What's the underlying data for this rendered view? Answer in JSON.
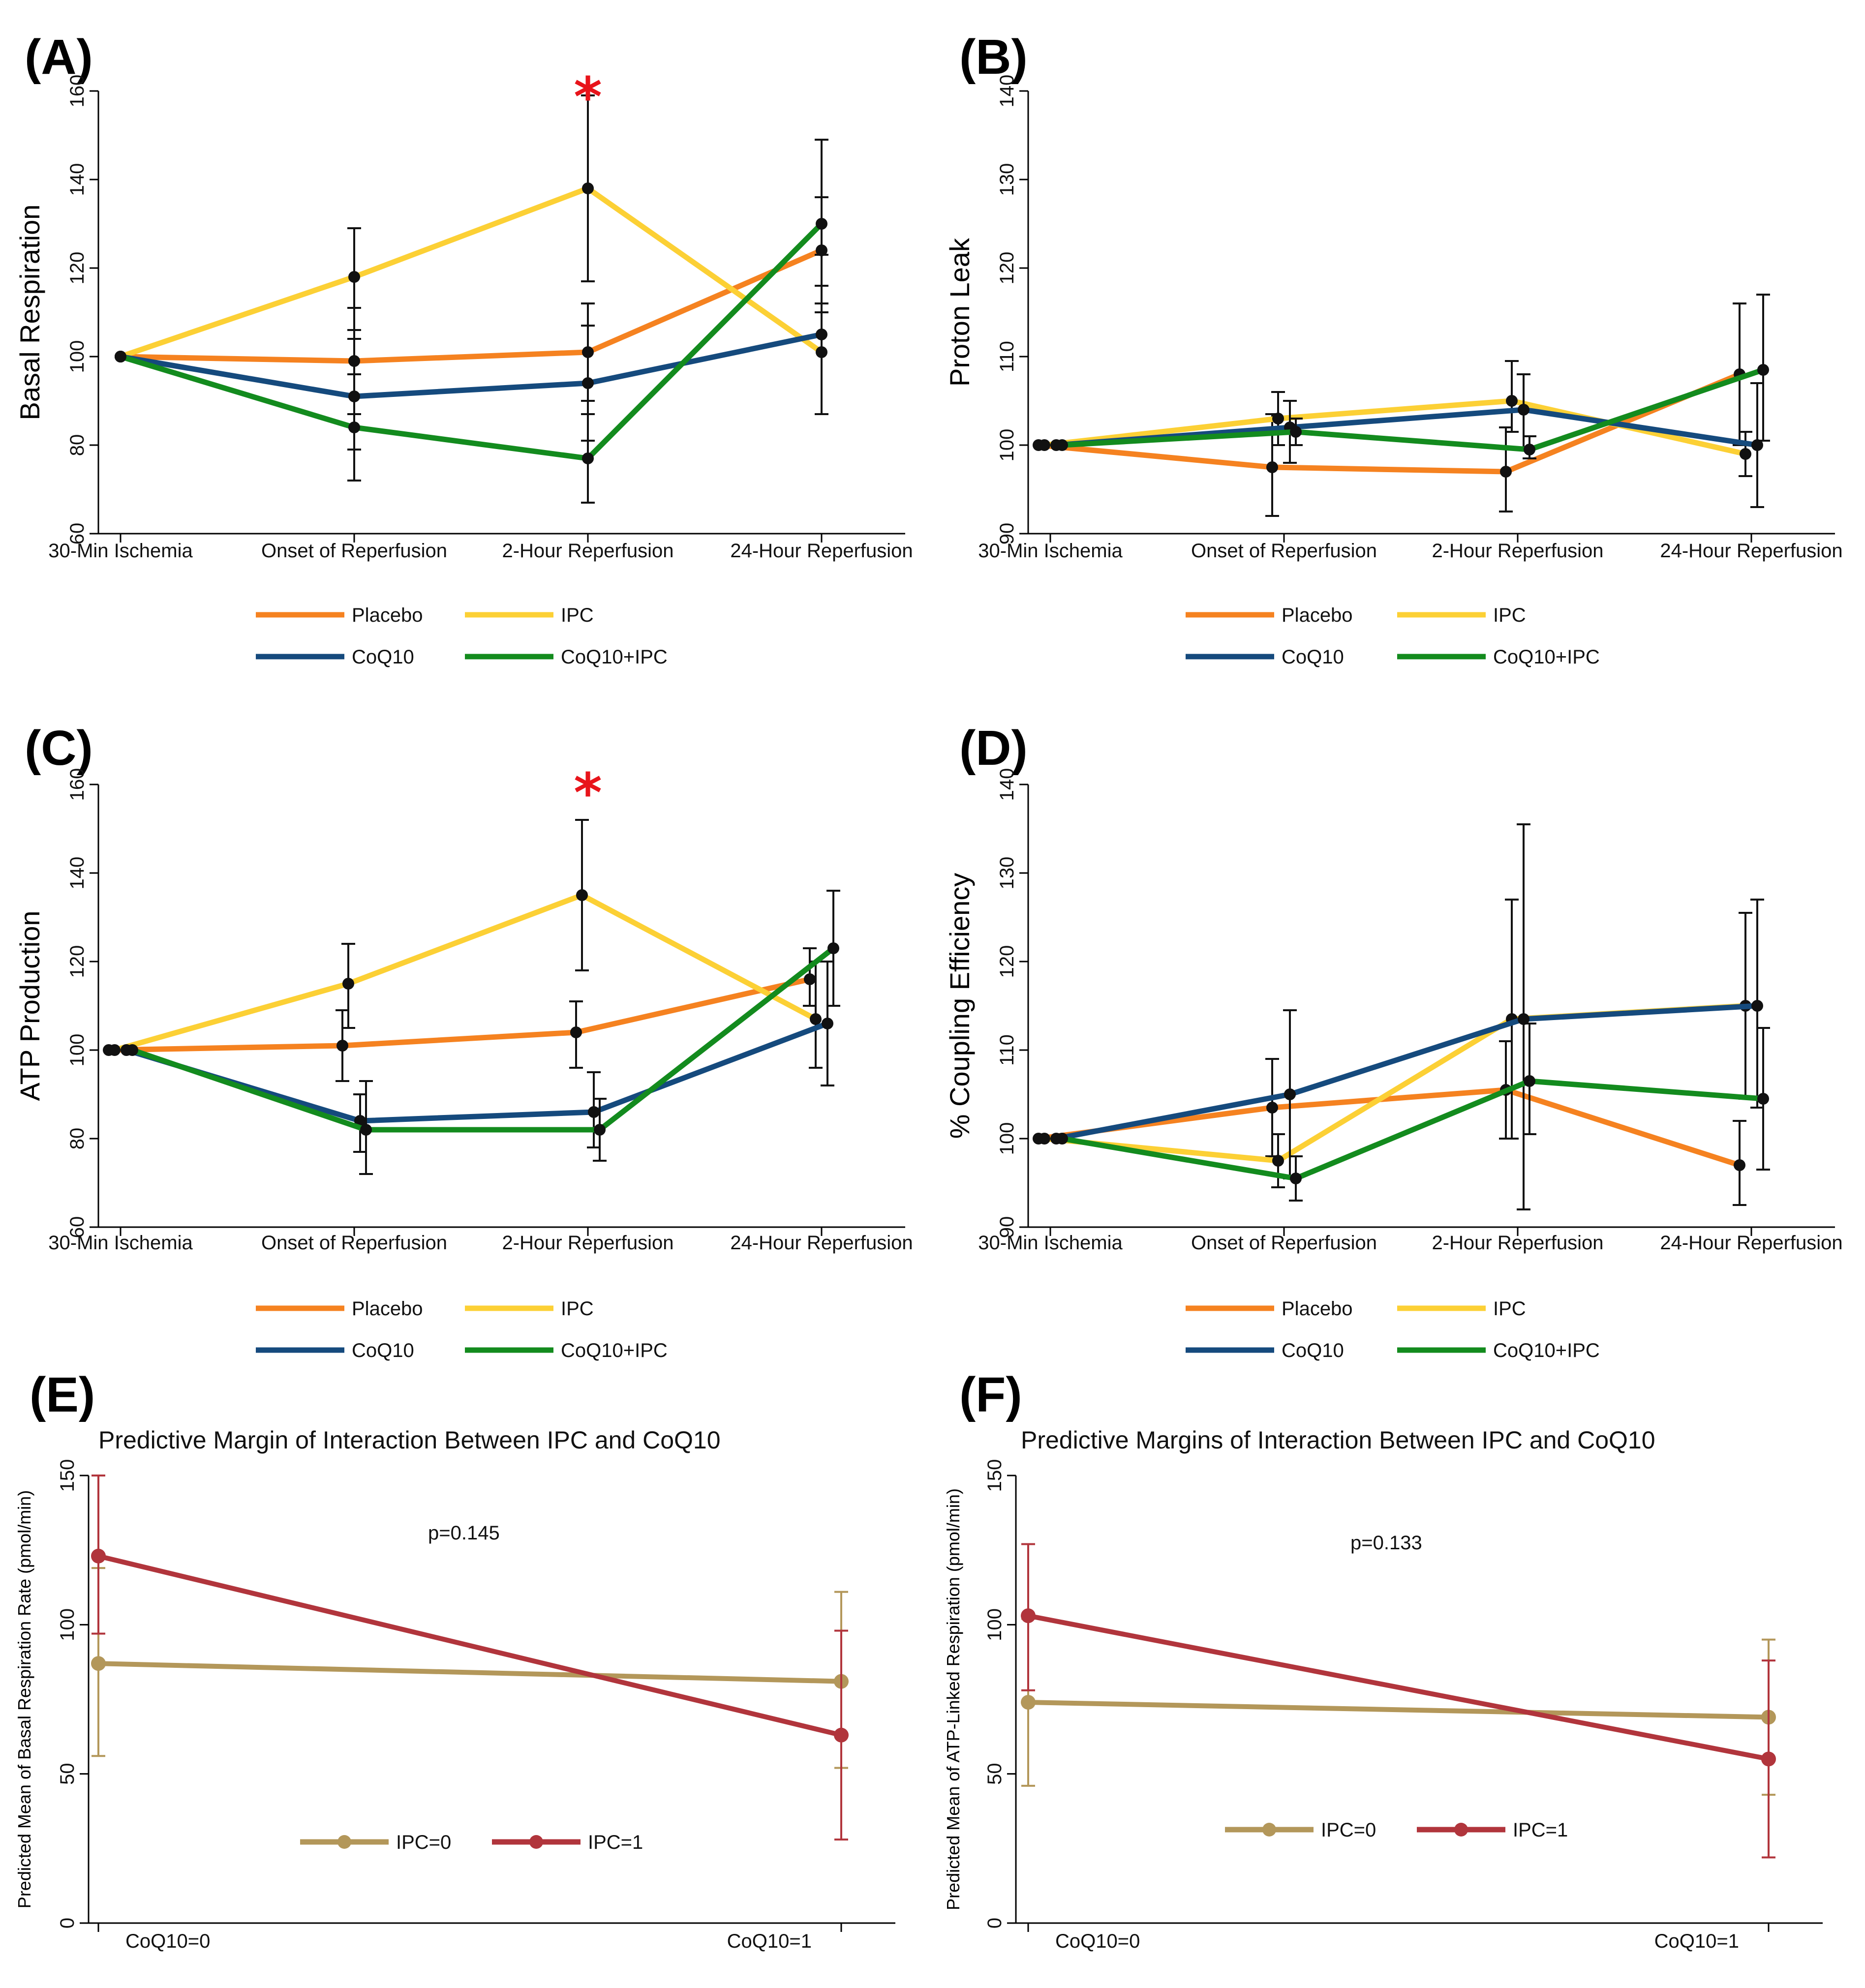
{
  "colors": {
    "Placebo": "#f58220",
    "IPC": "#fcd035",
    "CoQ10": "#154a7d",
    "CoQ10+IPC": "#138b1e",
    "IPC=0": "#b3975a",
    "IPC=1": "#b1353c",
    "star": "#e8141b",
    "marker": "#111111",
    "errorbar": "#111111"
  },
  "chart_data": [
    {
      "panel": "(A)",
      "type": "line",
      "title": "",
      "xlabel": "",
      "ylabel": "Basal Respiration",
      "ylim": [
        60,
        160
      ],
      "yticks": [
        60,
        80,
        100,
        120,
        140,
        160
      ],
      "categories": [
        "30-Min Ischemia",
        "Onset of Reperfusion",
        "2-Hour Reperfusion",
        "24-Hour Reperfusion"
      ],
      "series": [
        {
          "name": "Placebo",
          "values": [
            100,
            99,
            101,
            124
          ],
          "lower": [
            null,
            87,
            90,
            112
          ],
          "upper": [
            null,
            111,
            112,
            136
          ]
        },
        {
          "name": "IPC",
          "values": [
            100,
            118,
            138,
            101
          ],
          "lower": [
            null,
            106,
            117,
            87
          ],
          "upper": [
            null,
            129,
            159,
            116
          ]
        },
        {
          "name": "CoQ10",
          "values": [
            100,
            91,
            94,
            105
          ],
          "lower": [
            null,
            79,
            81,
            87
          ],
          "upper": [
            null,
            104,
            107,
            123
          ]
        },
        {
          "name": "CoQ10+IPC",
          "values": [
            100,
            84,
            77,
            130
          ],
          "lower": [
            null,
            72,
            67,
            110
          ],
          "upper": [
            null,
            96,
            87,
            149
          ]
        }
      ],
      "annotations": [
        {
          "text": "*",
          "category": "2-Hour Reperfusion"
        }
      ],
      "legend": [
        "Placebo",
        "IPC",
        "CoQ10",
        "CoQ10+IPC"
      ]
    },
    {
      "panel": "(B)",
      "type": "line",
      "title": "",
      "xlabel": "",
      "ylabel": "Proton Leak",
      "ylim": [
        90,
        140
      ],
      "yticks": [
        90,
        100,
        110,
        120,
        130,
        140
      ],
      "categories": [
        "30-Min Ischemia",
        "Onset of Reperfusion",
        "2-Hour Reperfusion",
        "24-Hour Reperfusion"
      ],
      "series": [
        {
          "name": "Placebo",
          "values": [
            100,
            97.5,
            97,
            108
          ],
          "lower": [
            null,
            92,
            92.5,
            100
          ],
          "upper": [
            null,
            103.5,
            102,
            116
          ]
        },
        {
          "name": "IPC",
          "values": [
            100,
            103,
            105,
            99
          ],
          "lower": [
            null,
            100,
            101.5,
            96.5
          ],
          "upper": [
            null,
            106,
            109.5,
            101.5
          ]
        },
        {
          "name": "CoQ10",
          "values": [
            100,
            102,
            104,
            100
          ],
          "lower": [
            null,
            98,
            99.5,
            93
          ],
          "upper": [
            null,
            105,
            108,
            107
          ]
        },
        {
          "name": "CoQ10+IPC",
          "values": [
            100,
            101.5,
            99.5,
            108.5
          ],
          "lower": [
            null,
            100,
            98.5,
            100.5
          ],
          "upper": [
            null,
            103,
            101,
            117
          ]
        }
      ],
      "annotations": [],
      "legend": [
        "Placebo",
        "IPC",
        "CoQ10",
        "CoQ10+IPC"
      ]
    },
    {
      "panel": "(C)",
      "type": "line",
      "title": "",
      "xlabel": "",
      "ylabel": "ATP Production",
      "ylim": [
        60,
        160
      ],
      "yticks": [
        60,
        80,
        100,
        120,
        140,
        160
      ],
      "categories": [
        "30-Min Ischemia",
        "Onset of Reperfusion",
        "2-Hour Reperfusion",
        "24-Hour Reperfusion"
      ],
      "series": [
        {
          "name": "Placebo",
          "values": [
            100,
            101,
            104,
            116
          ],
          "lower": [
            null,
            93,
            96,
            110
          ],
          "upper": [
            null,
            109,
            111,
            123
          ]
        },
        {
          "name": "IPC",
          "values": [
            100,
            115,
            135,
            107
          ],
          "lower": [
            null,
            105,
            118,
            96
          ],
          "upper": [
            null,
            124,
            152,
            120
          ]
        },
        {
          "name": "CoQ10",
          "values": [
            100,
            84,
            86,
            106
          ],
          "lower": [
            null,
            77,
            78,
            92
          ],
          "upper": [
            null,
            90,
            95,
            120
          ]
        },
        {
          "name": "CoQ10+IPC",
          "values": [
            100,
            82,
            82,
            123
          ],
          "lower": [
            null,
            72,
            75,
            110
          ],
          "upper": [
            null,
            93,
            89,
            136
          ]
        }
      ],
      "annotations": [
        {
          "text": "*",
          "category": "2-Hour Reperfusion"
        }
      ],
      "legend": [
        "Placebo",
        "IPC",
        "CoQ10",
        "CoQ10+IPC"
      ]
    },
    {
      "panel": "(D)",
      "type": "line",
      "title": "",
      "xlabel": "",
      "ylabel": "% Coupling Efficiency",
      "ylim": [
        90,
        140
      ],
      "yticks": [
        90,
        100,
        110,
        120,
        130,
        140
      ],
      "categories": [
        "30-Min Ischemia",
        "Onset of Reperfusion",
        "2-Hour Reperfusion",
        "24-Hour Reperfusion"
      ],
      "series": [
        {
          "name": "Placebo",
          "values": [
            100,
            103.5,
            105.5,
            97
          ],
          "lower": [
            null,
            98,
            100,
            92.5
          ],
          "upper": [
            null,
            109,
            111,
            102
          ]
        },
        {
          "name": "IPC",
          "values": [
            100,
            97.5,
            113.5,
            115
          ],
          "lower": [
            null,
            94.5,
            100,
            104.5
          ],
          "upper": [
            null,
            100.5,
            127,
            125.5
          ]
        },
        {
          "name": "CoQ10",
          "values": [
            100,
            105,
            113.5,
            115
          ],
          "lower": [
            null,
            95.5,
            92,
            103.5
          ],
          "upper": [
            null,
            114.5,
            135.5,
            127
          ]
        },
        {
          "name": "CoQ10+IPC",
          "values": [
            100,
            95.5,
            106.5,
            104.5
          ],
          "lower": [
            null,
            93,
            100.5,
            96.5
          ],
          "upper": [
            null,
            98,
            113,
            112.5
          ]
        }
      ],
      "annotations": [],
      "legend": [
        "Placebo",
        "IPC",
        "CoQ10",
        "CoQ10+IPC"
      ]
    },
    {
      "panel": "(E)",
      "type": "line",
      "title": "Predictive Margin of Interaction Between IPC and CoQ10",
      "xlabel": "",
      "ylabel": "Predicted Mean of Basal Respiration Rate (pmol/min)",
      "ylim": [
        0,
        150
      ],
      "yticks": [
        0,
        50,
        100,
        150
      ],
      "categories": [
        "CoQ10=0",
        "CoQ10=1"
      ],
      "series": [
        {
          "name": "IPC=0",
          "values": [
            87,
            81
          ],
          "lower": [
            56,
            52
          ],
          "upper": [
            119,
            111
          ]
        },
        {
          "name": "IPC=1",
          "values": [
            123,
            63
          ],
          "lower": [
            97,
            28
          ],
          "upper": [
            150,
            98
          ]
        }
      ],
      "annotations": [
        {
          "text": "p=0.145"
        }
      ],
      "legend": [
        "IPC=0",
        "IPC=1"
      ]
    },
    {
      "panel": "(F)",
      "type": "line",
      "title": "Predictive Margins of Interaction Between IPC and CoQ10",
      "xlabel": "",
      "ylabel": "Predicted Mean of ATP-Linked Respiration (pmol/min)",
      "ylim": [
        0,
        150
      ],
      "yticks": [
        0,
        50,
        100,
        150
      ],
      "categories": [
        "CoQ10=0",
        "CoQ10=1"
      ],
      "series": [
        {
          "name": "IPC=0",
          "values": [
            74,
            69
          ],
          "lower": [
            46,
            43
          ],
          "upper": [
            102,
            95
          ]
        },
        {
          "name": "IPC=1",
          "values": [
            103,
            55
          ],
          "lower": [
            78,
            22
          ],
          "upper": [
            127,
            88
          ]
        }
      ],
      "annotations": [
        {
          "text": "p=0.133"
        }
      ],
      "legend": [
        "IPC=0",
        "IPC=1"
      ]
    }
  ]
}
